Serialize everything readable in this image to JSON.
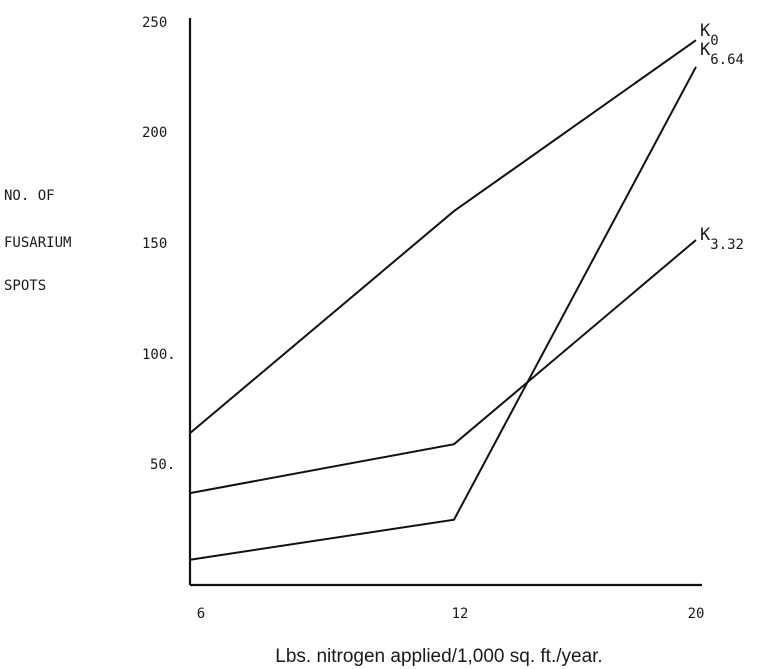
{
  "chart_data": {
    "type": "line",
    "xlabel": "Lbs. nitrogen applied/1,000 sq. ft./year.",
    "ylabel_lines": [
      "NO. OF",
      "FUSARIUM",
      "SPOTS"
    ],
    "x_ticks": [
      "6",
      "12",
      "20"
    ],
    "y_ticks": [
      "250",
      "200",
      "150",
      "100.",
      "50."
    ],
    "ylim": [
      0,
      250
    ],
    "grid": false,
    "series": [
      {
        "label_main": "K",
        "label_sub": "0",
        "x": [
          6,
          12,
          20
        ],
        "y": [
          63,
          163,
          240
        ]
      },
      {
        "label_main": "K",
        "label_sub": "6.64",
        "x": [
          6,
          12,
          20
        ],
        "y": [
          6,
          24,
          228
        ]
      },
      {
        "label_main": "K",
        "label_sub": "3.32",
        "x": [
          6,
          12,
          20
        ],
        "y": [
          36,
          58,
          150
        ]
      }
    ]
  }
}
